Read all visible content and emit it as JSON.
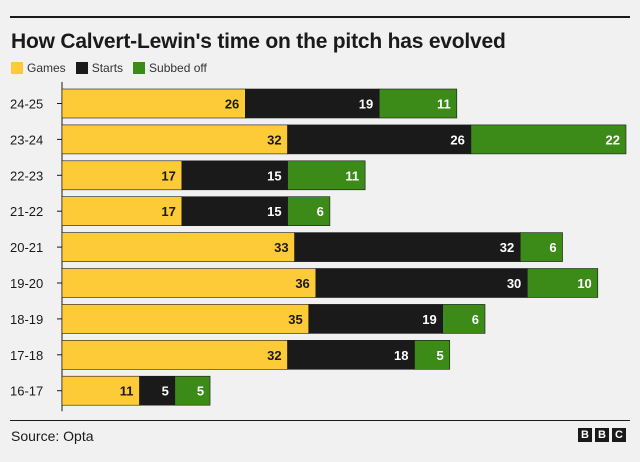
{
  "header": {
    "title": "How Calvert-Lewin's time on the pitch has evolved"
  },
  "legend": {
    "items": [
      {
        "label": "Games",
        "color": "#fdca38"
      },
      {
        "label": "Starts",
        "color": "#1a1a1a"
      },
      {
        "label": "Subbed off",
        "color": "#3c8a18"
      }
    ]
  },
  "footer": {
    "source": "Source: Opta",
    "brand_letters": [
      "B",
      "B",
      "C"
    ]
  },
  "chart_data": {
    "type": "bar",
    "orientation": "horizontal",
    "stacked": true,
    "title": "How Calvert-Lewin's time on the pitch has evolved",
    "categories": [
      "24-25",
      "23-24",
      "22-23",
      "21-22",
      "20-21",
      "19-20",
      "18-19",
      "17-18",
      "16-17"
    ],
    "series": [
      {
        "name": "Games",
        "color": "#fdca38",
        "label_color": "#1a1a1a",
        "values": [
          26,
          32,
          17,
          17,
          33,
          36,
          35,
          32,
          11
        ]
      },
      {
        "name": "Starts",
        "color": "#1a1a1a",
        "label_color": "#ffffff",
        "values": [
          19,
          26,
          15,
          15,
          32,
          30,
          19,
          18,
          5
        ]
      },
      {
        "name": "Subbed off",
        "color": "#3c8a18",
        "label_color": "#ffffff",
        "values": [
          11,
          22,
          11,
          6,
          6,
          10,
          6,
          5,
          5
        ]
      }
    ],
    "xlim": [
      0,
      80
    ],
    "legend_position": "top-left",
    "grid": false
  }
}
